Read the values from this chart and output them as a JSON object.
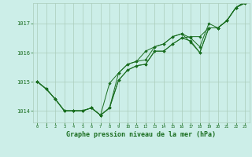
{
  "background_color": "#cceee8",
  "grid_color": "#aaccbb",
  "line_color": "#1a6e20",
  "marker_color": "#1a6e20",
  "xlabel": "Graphe pression niveau de la mer (hPa)",
  "xlabel_fontsize": 6.0,
  "xlim": [
    -0.5,
    23.5
  ],
  "ylim": [
    1013.6,
    1017.7
  ],
  "yticks": [
    1014,
    1015,
    1016,
    1017
  ],
  "xticks": [
    0,
    1,
    2,
    3,
    4,
    5,
    6,
    7,
    8,
    9,
    10,
    11,
    12,
    13,
    14,
    15,
    16,
    17,
    18,
    19,
    20,
    21,
    22,
    23
  ],
  "series": [
    [
      1015.0,
      1014.75,
      1014.4,
      1014.0,
      1014.0,
      1014.0,
      1014.1,
      1013.85,
      1014.1,
      1015.05,
      1015.4,
      1015.55,
      1015.6,
      1016.05,
      1016.05,
      1016.3,
      1016.5,
      1016.4,
      1016.0,
      1016.85,
      1016.85,
      1017.1,
      1017.55,
      1017.7
    ],
    [
      1015.0,
      1014.75,
      1014.4,
      1014.0,
      1014.0,
      1014.0,
      1014.1,
      1013.85,
      1014.1,
      1015.3,
      1015.6,
      1015.7,
      1015.75,
      1016.2,
      1016.3,
      1016.55,
      1016.65,
      1016.5,
      1016.2,
      1017.0,
      1016.85,
      1017.1,
      1017.55,
      1017.75
    ],
    [
      1015.0,
      1014.75,
      1014.4,
      1014.0,
      1014.0,
      1014.0,
      1014.1,
      1013.85,
      1014.1,
      1015.05,
      1015.4,
      1015.55,
      1015.6,
      1016.05,
      1016.05,
      1016.3,
      1016.5,
      1016.55,
      1016.55,
      1016.85,
      1016.85,
      1017.1,
      1017.55,
      1017.75
    ],
    [
      1015.0,
      1014.75,
      1014.4,
      1014.0,
      1014.0,
      1014.0,
      1014.1,
      1013.85,
      1014.95,
      1015.3,
      1015.6,
      1015.7,
      1016.05,
      1016.2,
      1016.3,
      1016.55,
      1016.65,
      1016.35,
      1016.0,
      1016.85,
      1016.85,
      1017.1,
      1017.55,
      1017.7
    ]
  ]
}
